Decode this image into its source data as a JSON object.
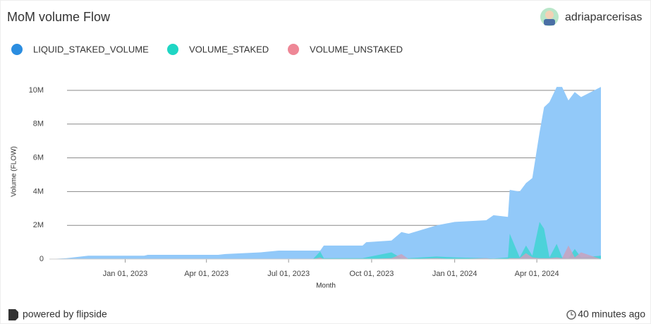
{
  "header": {
    "user": "adriaparcerisas"
  },
  "footer": {
    "brand": "powered by flipside",
    "updated": "40 minutes ago"
  },
  "chart_data": {
    "type": "area",
    "title": "MoM volume Flow",
    "x_label": "Month",
    "y_label": "Volume (FLOW)",
    "legend": "top-left",
    "x": [
      "2022-10-09",
      "2022-10-28",
      "2022-11-21",
      "2023-01-22",
      "2023-01-26",
      "2023-04-14",
      "2023-04-22",
      "2023-05-31",
      "2023-06-20",
      "2023-07-28",
      "2023-08-05",
      "2023-08-09",
      "2023-09-21",
      "2023-09-25",
      "2023-10-23",
      "2023-11-03",
      "2023-11-11",
      "2023-12-12",
      "2024-01-01",
      "2024-02-05",
      "2024-02-13",
      "2024-02-29",
      "2024-03-02",
      "2024-03-13",
      "2024-03-20",
      "2024-03-27",
      "2024-04-04",
      "2024-04-09",
      "2024-04-15",
      "2024-04-23",
      "2024-04-29",
      "2024-05-06",
      "2024-05-13",
      "2024-05-20",
      "2024-06-11"
    ],
    "series": [
      {
        "name": "LIQUID_STAKED_VOLUME",
        "color": "#2b8de0",
        "fill": "#92c9f9",
        "values": [
          0,
          50000,
          200000,
          200000,
          250000,
          250000,
          300000,
          400000,
          500000,
          500000,
          500000,
          800000,
          800000,
          1000000,
          1100000,
          1600000,
          1500000,
          2000000,
          2200000,
          2300000,
          2600000,
          2500000,
          4100000,
          4000000,
          4500000,
          4800000,
          7500000,
          9000000,
          9300000,
          10200000,
          10200000,
          9400000,
          9900000,
          9600000,
          10200000
        ]
      },
      {
        "name": "VOLUME_STAKED",
        "color": "#1fd6c4",
        "fill": "#3fd3d3",
        "values": [
          0,
          0,
          20000,
          0,
          0,
          10000,
          0,
          0,
          20000,
          0,
          450000,
          50000,
          50000,
          100000,
          400000,
          50000,
          50000,
          150000,
          100000,
          50000,
          30000,
          100000,
          1500000,
          100000,
          800000,
          200000,
          2200000,
          1800000,
          100000,
          900000,
          100000,
          50000,
          600000,
          100000,
          200000
        ]
      },
      {
        "name": "VOLUME_UNSTAKED",
        "color": "#ee8796",
        "fill": "#c9a2bd",
        "values": [
          0,
          0,
          0,
          0,
          0,
          10000,
          0,
          0,
          0,
          0,
          100000,
          0,
          0,
          0,
          50000,
          300000,
          0,
          50000,
          0,
          50000,
          0,
          20000,
          50000,
          50000,
          350000,
          100000,
          50000,
          50000,
          50000,
          100000,
          50000,
          800000,
          100000,
          400000,
          0
        ]
      }
    ],
    "xlim": [
      "2022-10-09",
      "2024-06-11"
    ],
    "xticks": [
      {
        "value": "2023-01-01",
        "label": "Jan 01, 2023"
      },
      {
        "value": "2023-04-01",
        "label": "Apr 01, 2023"
      },
      {
        "value": "2023-07-01",
        "label": "Jul 01, 2023"
      },
      {
        "value": "2023-10-01",
        "label": "Oct 01, 2023"
      },
      {
        "value": "2024-01-01",
        "label": "Jan 01, 2024"
      },
      {
        "value": "2024-04-01",
        "label": "Apr 01, 2024"
      }
    ],
    "ylim": [
      0,
      10500000
    ],
    "yticks": [
      0,
      {
        "value": 2000000,
        "label": "2M"
      },
      {
        "value": 4000000,
        "label": "4M"
      },
      {
        "value": 6000000,
        "label": "6M"
      },
      {
        "value": 8000000,
        "label": "8M"
      },
      {
        "value": 10000000,
        "label": "10M"
      }
    ],
    "grid": true
  }
}
